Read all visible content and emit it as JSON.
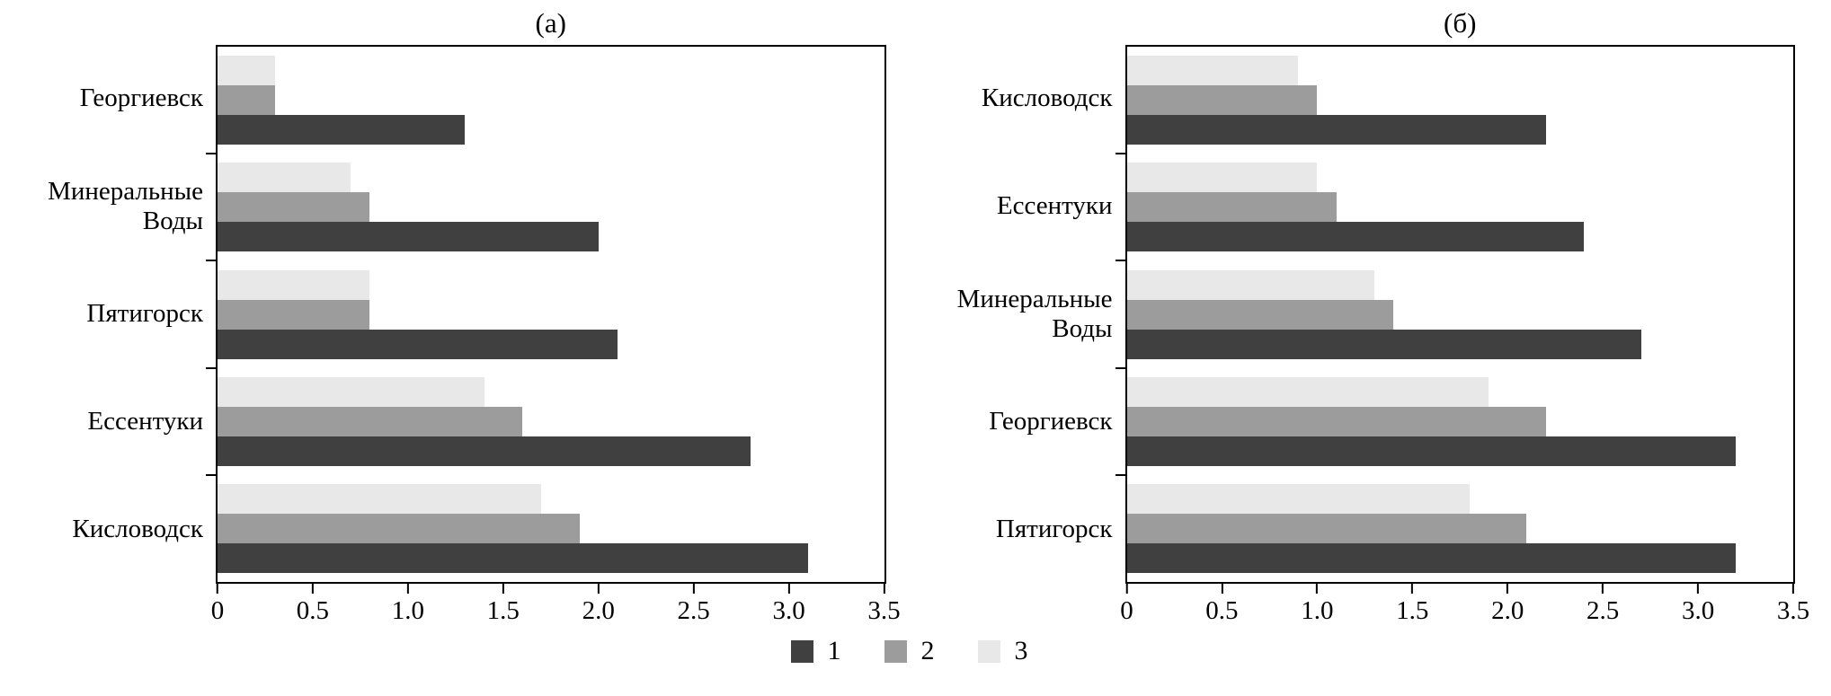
{
  "figure": {
    "background": "#ffffff",
    "axis_color": "#000000"
  },
  "legend": {
    "position": "bottom-center",
    "items": [
      {
        "label": "1",
        "color": "#404040"
      },
      {
        "label": "2",
        "color": "#9c9c9c"
      },
      {
        "label": "3",
        "color": "#e8e8e8"
      }
    ]
  },
  "chart_data": [
    {
      "type": "bar",
      "orientation": "horizontal",
      "title": "(а)",
      "categories": [
        "Георгиевск",
        "Минеральные Воды",
        "Пятигорск",
        "Ессентуки",
        "Кисловодск"
      ],
      "series": [
        {
          "name": "1",
          "color": "#404040",
          "values": [
            1.3,
            2.0,
            2.1,
            2.8,
            3.1
          ]
        },
        {
          "name": "2",
          "color": "#9c9c9c",
          "values": [
            0.3,
            0.8,
            0.8,
            1.6,
            1.9
          ]
        },
        {
          "name": "3",
          "color": "#e8e8e8",
          "values": [
            0.3,
            0.7,
            0.8,
            1.4,
            1.7
          ]
        }
      ],
      "bar_order_top_to_bottom": [
        "3",
        "2",
        "1"
      ],
      "xlim": [
        0,
        3.5
      ],
      "xtick_labels": [
        "0",
        "0.5",
        "1.0",
        "1.5",
        "2.0",
        "2.5",
        "3.0",
        "3.5"
      ],
      "grid": false,
      "plot_border": true
    },
    {
      "type": "bar",
      "orientation": "horizontal",
      "title": "(б)",
      "categories": [
        "Кисловодск",
        "Ессентуки",
        "Минеральные Воды",
        "Георгиевск",
        "Пятигорск"
      ],
      "series": [
        {
          "name": "1",
          "color": "#404040",
          "values": [
            2.2,
            2.4,
            2.7,
            3.2,
            3.2
          ]
        },
        {
          "name": "2",
          "color": "#9c9c9c",
          "values": [
            1.0,
            1.1,
            1.4,
            2.2,
            2.1
          ]
        },
        {
          "name": "3",
          "color": "#e8e8e8",
          "values": [
            0.9,
            1.0,
            1.3,
            1.9,
            1.8
          ]
        }
      ],
      "bar_order_top_to_bottom": [
        "3",
        "2",
        "1"
      ],
      "xlim": [
        0,
        3.5
      ],
      "xtick_labels": [
        "0",
        "0.5",
        "1.0",
        "1.5",
        "2.0",
        "2.5",
        "3.0",
        "3.5"
      ],
      "grid": false,
      "plot_border": true
    }
  ]
}
